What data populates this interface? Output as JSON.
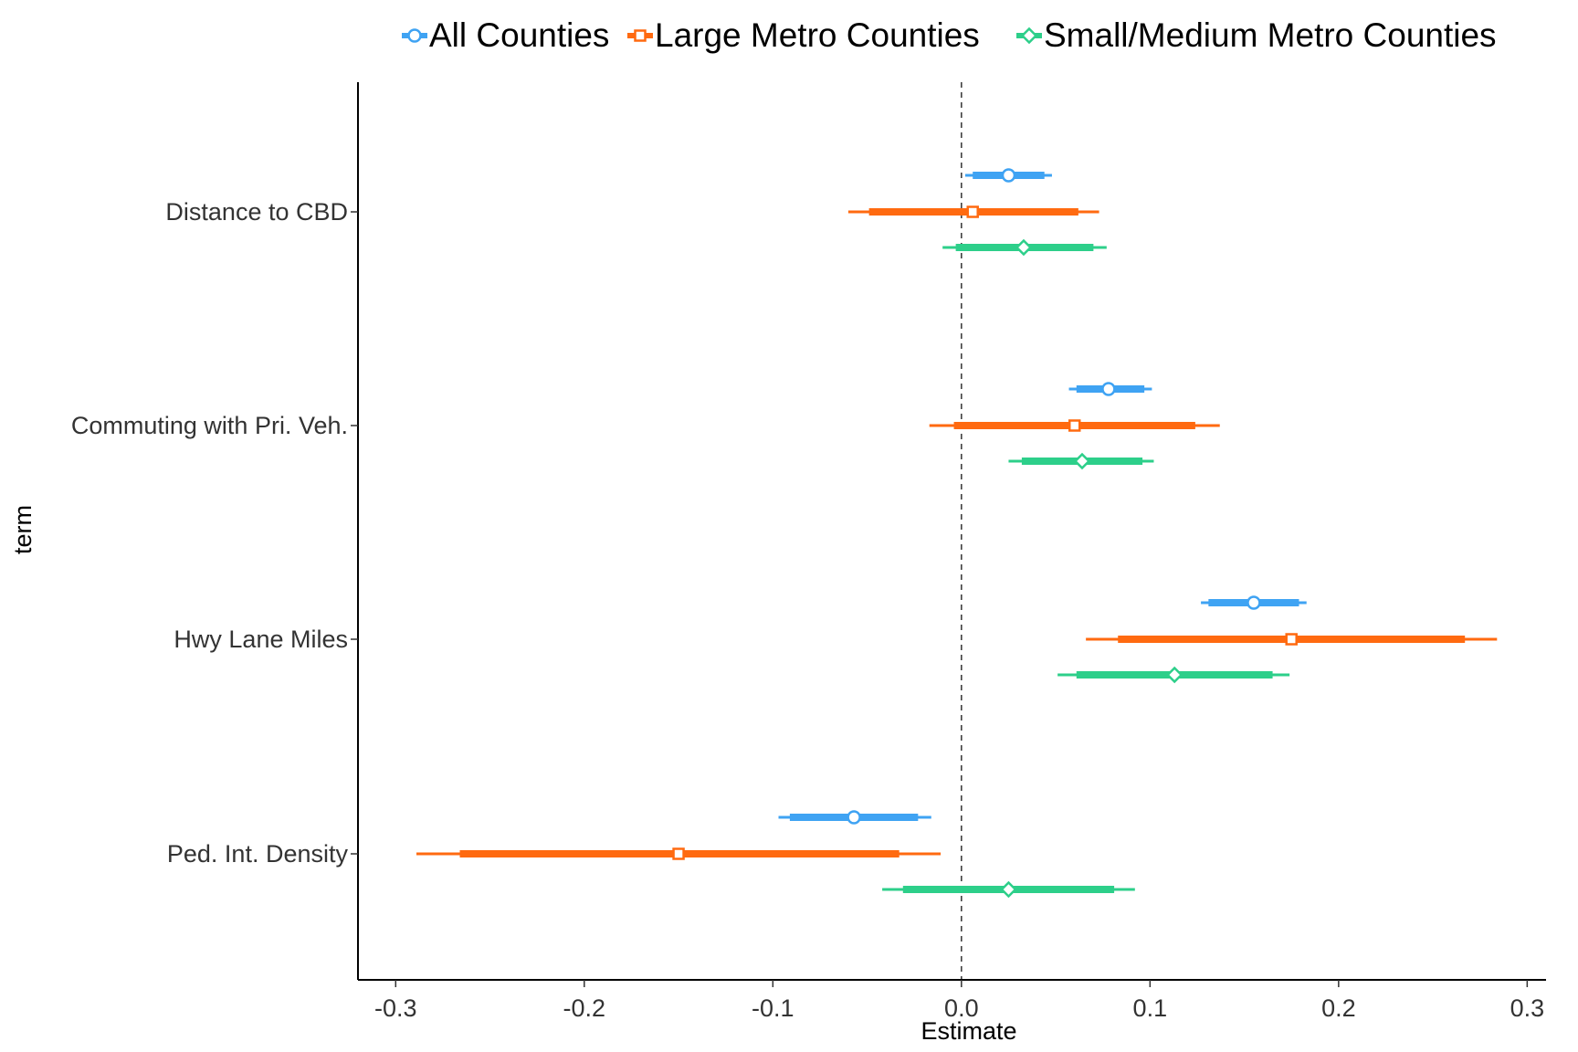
{
  "chart_data": {
    "type": "coefficient-plot",
    "xlabel": "Estimate",
    "ylabel": "term",
    "xlim": [
      -0.32,
      0.31
    ],
    "x_ticks": [
      -0.3,
      -0.2,
      -0.1,
      0.0,
      0.1,
      0.2,
      0.3
    ],
    "x_tick_labels": [
      "-0.3",
      "-0.2",
      "-0.1",
      "0.0",
      "0.1",
      "0.2",
      "0.3"
    ],
    "reference_line": 0,
    "grid": false,
    "legend_position": "top",
    "terms": [
      "Distance to CBD",
      "Commuting with Pri. Veh.",
      "Hwy Lane Miles",
      "Ped. Int. Density"
    ],
    "series": [
      {
        "name": "All Counties",
        "color": "#3fa3f3",
        "marker": "circle",
        "points": [
          {
            "term": "Distance to CBD",
            "estimate": 0.025,
            "inner": [
              0.006,
              0.044
            ],
            "outer": [
              0.002,
              0.048
            ]
          },
          {
            "term": "Commuting with Pri. Veh.",
            "estimate": 0.078,
            "inner": [
              0.061,
              0.097
            ],
            "outer": [
              0.057,
              0.101
            ]
          },
          {
            "term": "Hwy Lane Miles",
            "estimate": 0.155,
            "inner": [
              0.131,
              0.179
            ],
            "outer": [
              0.127,
              0.183
            ]
          },
          {
            "term": "Ped. Int. Density",
            "estimate": -0.057,
            "inner": [
              -0.091,
              -0.023
            ],
            "outer": [
              -0.097,
              -0.016
            ]
          }
        ]
      },
      {
        "name": "Large Metro Counties",
        "color": "#ff6a10",
        "marker": "square",
        "points": [
          {
            "term": "Distance to CBD",
            "estimate": 0.006,
            "inner": [
              -0.049,
              0.062
            ],
            "outer": [
              -0.06,
              0.073
            ]
          },
          {
            "term": "Commuting with Pri. Veh.",
            "estimate": 0.06,
            "inner": [
              -0.004,
              0.124
            ],
            "outer": [
              -0.017,
              0.137
            ]
          },
          {
            "term": "Hwy Lane Miles",
            "estimate": 0.175,
            "inner": [
              0.083,
              0.267
            ],
            "outer": [
              0.066,
              0.284
            ]
          },
          {
            "term": "Ped. Int. Density",
            "estimate": -0.15,
            "inner": [
              -0.266,
              -0.033
            ],
            "outer": [
              -0.289,
              -0.011
            ]
          }
        ]
      },
      {
        "name": "Small/Medium Metro Counties",
        "color": "#2dcf8a",
        "marker": "diamond",
        "points": [
          {
            "term": "Distance to CBD",
            "estimate": 0.033,
            "inner": [
              -0.003,
              0.07
            ],
            "outer": [
              -0.01,
              0.077
            ]
          },
          {
            "term": "Commuting with Pri. Veh.",
            "estimate": 0.064,
            "inner": [
              0.032,
              0.096
            ],
            "outer": [
              0.025,
              0.102
            ]
          },
          {
            "term": "Hwy Lane Miles",
            "estimate": 0.113,
            "inner": [
              0.061,
              0.165
            ],
            "outer": [
              0.051,
              0.174
            ]
          },
          {
            "term": "Ped. Int. Density",
            "estimate": 0.025,
            "inner": [
              -0.031,
              0.081
            ],
            "outer": [
              -0.042,
              0.092
            ]
          }
        ]
      }
    ]
  }
}
